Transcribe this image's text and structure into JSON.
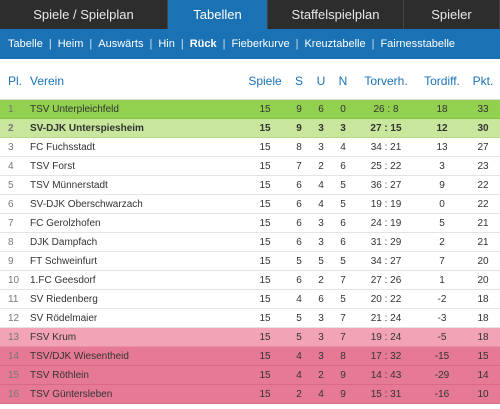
{
  "tabs": [
    {
      "label": "Spiele / Spielplan",
      "active": false,
      "width": 168
    },
    {
      "label": "Tabellen",
      "active": true,
      "width": 100
    },
    {
      "label": "Staffelspielplan",
      "active": false,
      "width": 136
    },
    {
      "label": "Spieler",
      "active": false,
      "width": 96
    }
  ],
  "subnav": [
    {
      "label": "Tabelle",
      "active": false
    },
    {
      "label": "Heim",
      "active": false
    },
    {
      "label": "Auswärts",
      "active": false
    },
    {
      "label": "Hin",
      "active": false
    },
    {
      "label": "Rück",
      "active": true
    },
    {
      "label": "Fieberkurve",
      "active": false
    },
    {
      "label": "Kreuztabelle",
      "active": false
    },
    {
      "label": "Fairnesstabelle",
      "active": false
    }
  ],
  "table": {
    "headers": {
      "pl": "Pl.",
      "verein": "Verein",
      "spiele": "Spiele",
      "s": "S",
      "u": "U",
      "n": "N",
      "torverh": "Torverh.",
      "tordiff": "Tordiff.",
      "pkt": "Pkt."
    },
    "rows": [
      {
        "pl": "1",
        "verein": "TSV Unterpleichfeld",
        "spiele": "15",
        "s": "9",
        "u": "6",
        "n": "0",
        "torverh": "26 : 8",
        "tordiff": "18",
        "pkt": "33",
        "style": "green",
        "bold": false
      },
      {
        "pl": "2",
        "verein": "SV-DJK Unterspiesheim",
        "spiele": "15",
        "s": "9",
        "u": "3",
        "n": "3",
        "torverh": "27 : 15",
        "tordiff": "12",
        "pkt": "30",
        "style": "green2",
        "bold": true
      },
      {
        "pl": "3",
        "verein": "FC Fuchsstadt",
        "spiele": "15",
        "s": "8",
        "u": "3",
        "n": "4",
        "torverh": "34 : 21",
        "tordiff": "13",
        "pkt": "27",
        "style": "",
        "bold": false
      },
      {
        "pl": "4",
        "verein": "TSV Forst",
        "spiele": "15",
        "s": "7",
        "u": "2",
        "n": "6",
        "torverh": "25 : 22",
        "tordiff": "3",
        "pkt": "23",
        "style": "",
        "bold": false
      },
      {
        "pl": "5",
        "verein": "TSV Münnerstadt",
        "spiele": "15",
        "s": "6",
        "u": "4",
        "n": "5",
        "torverh": "36 : 27",
        "tordiff": "9",
        "pkt": "22",
        "style": "",
        "bold": false
      },
      {
        "pl": "6",
        "verein": "SV-DJK Oberschwarzach",
        "spiele": "15",
        "s": "6",
        "u": "4",
        "n": "5",
        "torverh": "19 : 19",
        "tordiff": "0",
        "pkt": "22",
        "style": "",
        "bold": false
      },
      {
        "pl": "7",
        "verein": "FC Gerolzhofen",
        "spiele": "15",
        "s": "6",
        "u": "3",
        "n": "6",
        "torverh": "24 : 19",
        "tordiff": "5",
        "pkt": "21",
        "style": "",
        "bold": false
      },
      {
        "pl": "8",
        "verein": "DJK Dampfach",
        "spiele": "15",
        "s": "6",
        "u": "3",
        "n": "6",
        "torverh": "31 : 29",
        "tordiff": "2",
        "pkt": "21",
        "style": "",
        "bold": false
      },
      {
        "pl": "9",
        "verein": "FT Schweinfurt",
        "spiele": "15",
        "s": "5",
        "u": "5",
        "n": "5",
        "torverh": "34 : 27",
        "tordiff": "7",
        "pkt": "20",
        "style": "",
        "bold": false
      },
      {
        "pl": "10",
        "verein": "1.FC Geesdorf",
        "spiele": "15",
        "s": "6",
        "u": "2",
        "n": "7",
        "torverh": "27 : 26",
        "tordiff": "1",
        "pkt": "20",
        "style": "",
        "bold": false
      },
      {
        "pl": "11",
        "verein": "SV Riedenberg",
        "spiele": "15",
        "s": "4",
        "u": "6",
        "n": "5",
        "torverh": "20 : 22",
        "tordiff": "-2",
        "pkt": "18",
        "style": "",
        "bold": false
      },
      {
        "pl": "12",
        "verein": "SV Rödelmaier",
        "spiele": "15",
        "s": "5",
        "u": "3",
        "n": "7",
        "torverh": "21 : 24",
        "tordiff": "-3",
        "pkt": "18",
        "style": "",
        "bold": false
      },
      {
        "pl": "13",
        "verein": "FSV Krum",
        "spiele": "15",
        "s": "5",
        "u": "3",
        "n": "7",
        "torverh": "19 : 24",
        "tordiff": "-5",
        "pkt": "18",
        "style": "pink",
        "bold": false
      },
      {
        "pl": "14",
        "verein": "TSV/DJK Wiesentheid",
        "spiele": "15",
        "s": "4",
        "u": "3",
        "n": "8",
        "torverh": "17 : 32",
        "tordiff": "-15",
        "pkt": "15",
        "style": "pink2",
        "bold": false
      },
      {
        "pl": "15",
        "verein": "TSV Röthlein",
        "spiele": "15",
        "s": "4",
        "u": "2",
        "n": "9",
        "torverh": "14 : 43",
        "tordiff": "-29",
        "pkt": "14",
        "style": "pink2",
        "bold": false
      },
      {
        "pl": "16",
        "verein": "TSV Güntersleben",
        "spiele": "15",
        "s": "2",
        "u": "4",
        "n": "9",
        "torverh": "15 : 31",
        "tordiff": "-16",
        "pkt": "10",
        "style": "pink2",
        "bold": false
      }
    ]
  }
}
